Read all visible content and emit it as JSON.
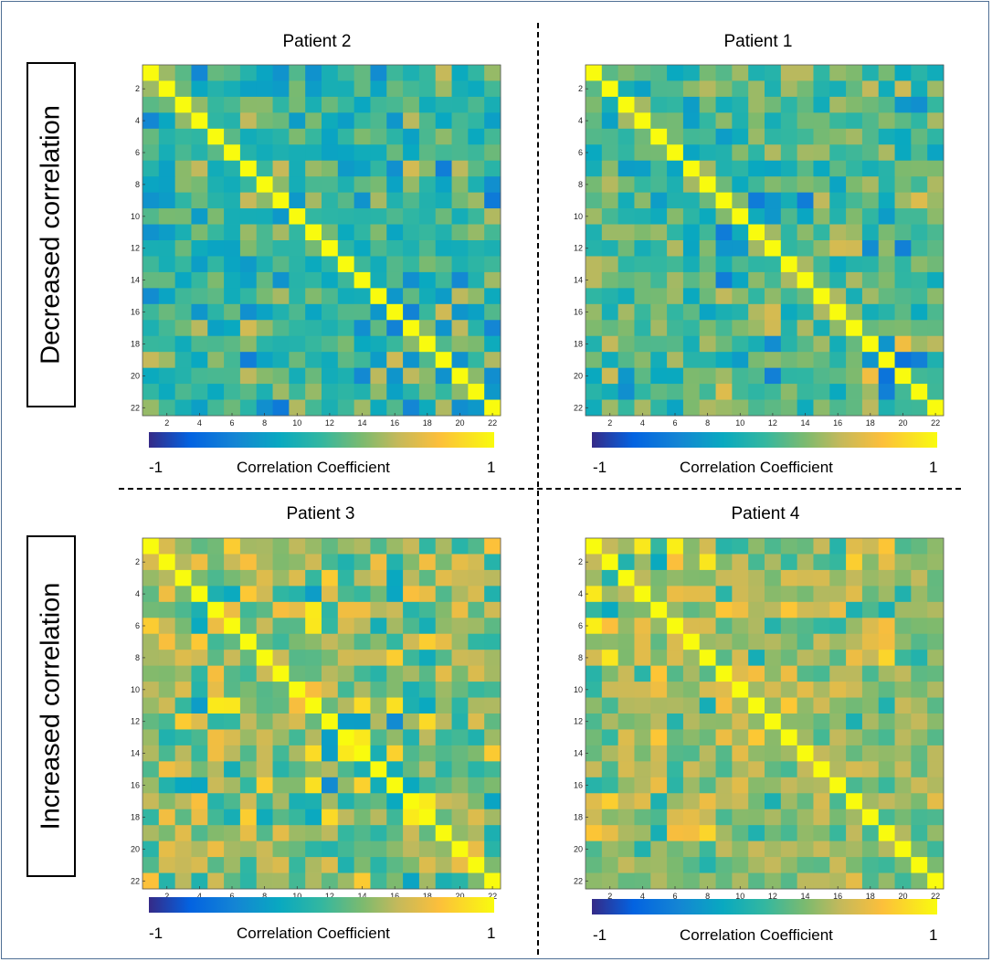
{
  "row_labels": {
    "top": "Decreased correlation",
    "bottom": "Increased correlation"
  },
  "colorbar": {
    "min_label": "-1",
    "max_label": "1",
    "label": "Correlation Coefficient",
    "colors": [
      "#352a87",
      "#0363e1",
      "#1485d4",
      "#09a9c0",
      "#33b7a0",
      "#7dba6e",
      "#c4b95b",
      "#fcbf3b",
      "#f9fb0e"
    ]
  },
  "chart_data": [
    {
      "type": "heatmap",
      "title": "Patient 2",
      "size": 22,
      "ticks": [
        2,
        4,
        6,
        8,
        10,
        12,
        14,
        16,
        18,
        20,
        22
      ],
      "seed": 11,
      "mean": 0.0,
      "spread": 0.32,
      "range": [
        -1,
        1
      ]
    },
    {
      "type": "heatmap",
      "title": "Patient 1",
      "size": 22,
      "ticks": [
        2,
        4,
        6,
        8,
        10,
        12,
        14,
        16,
        18,
        20,
        22
      ],
      "seed": 23,
      "mean": 0.08,
      "spread": 0.42,
      "range": [
        -1,
        1
      ]
    },
    {
      "type": "heatmap",
      "title": "Patient 3",
      "size": 22,
      "ticks": [
        2,
        4,
        6,
        8,
        10,
        12,
        14,
        16,
        18,
        20,
        22
      ],
      "seed": 37,
      "mean": 0.28,
      "spread": 0.45,
      "range": [
        -1,
        1
      ]
    },
    {
      "type": "heatmap",
      "title": "Patient 4",
      "size": 22,
      "ticks": [
        2,
        4,
        6,
        8,
        10,
        12,
        14,
        16,
        18,
        20,
        22
      ],
      "seed": 51,
      "mean": 0.32,
      "spread": 0.36,
      "range": [
        -1,
        1
      ]
    }
  ]
}
